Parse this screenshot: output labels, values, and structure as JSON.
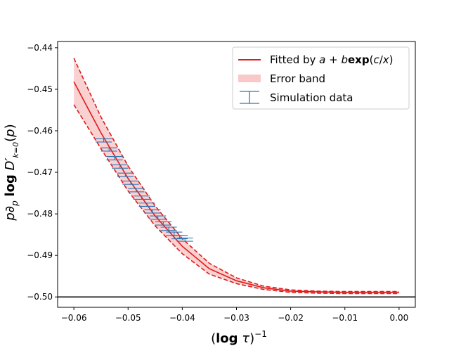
{
  "chart_data": {
    "type": "line",
    "xlabel": "(log τ)⁻¹",
    "ylabel": "p∂ₚ log D′ₖ₌₀(p)",
    "xlim": [
      -0.063,
      0.003
    ],
    "ylim": [
      -0.5025,
      -0.4385
    ],
    "x_ticks": [
      -0.06,
      -0.05,
      -0.04,
      -0.03,
      -0.02,
      -0.01,
      0.0
    ],
    "x_tick_labels": [
      "−0.06",
      "−0.05",
      "−0.04",
      "−0.03",
      "−0.02",
      "−0.01",
      "0.00"
    ],
    "y_ticks": [
      -0.44,
      -0.45,
      -0.46,
      -0.47,
      -0.48,
      -0.49,
      -0.5
    ],
    "y_tick_labels": [
      "−0.44",
      "−0.45",
      "−0.46",
      "−0.47",
      "−0.48",
      "−0.49",
      "−0.50"
    ],
    "legend_position": "top-right",
    "legend": [
      "Fitted by a + bexp(c/x)",
      "Error band",
      "Simulation data"
    ],
    "reference_line_y": -0.5,
    "colors": {
      "fit": "#e01b1b",
      "band": "#f9c9c9",
      "sim": "#2e75b6",
      "reference": "#000000"
    },
    "fit": {
      "x": [
        -0.06,
        -0.055,
        -0.05,
        -0.045,
        -0.04,
        -0.035,
        -0.03,
        -0.025,
        -0.02,
        -0.015,
        -0.01,
        -0.005,
        0.0
      ],
      "y": [
        -0.4482,
        -0.4605,
        -0.4715,
        -0.4805,
        -0.4878,
        -0.4932,
        -0.4961,
        -0.4978,
        -0.4986,
        -0.4988,
        -0.4989,
        -0.4989,
        -0.4989
      ]
    },
    "band_upper": {
      "x": [
        -0.06,
        -0.055,
        -0.05,
        -0.045,
        -0.04,
        -0.035,
        -0.03,
        -0.025,
        -0.02,
        -0.015,
        -0.01,
        -0.005,
        0.0
      ],
      "y": [
        -0.4425,
        -0.4567,
        -0.4685,
        -0.4781,
        -0.486,
        -0.4919,
        -0.4954,
        -0.4974,
        -0.4983,
        -0.4986,
        -0.4987,
        -0.4987,
        -0.4987
      ]
    },
    "band_lower": {
      "x": [
        -0.06,
        -0.055,
        -0.05,
        -0.045,
        -0.04,
        -0.035,
        -0.03,
        -0.025,
        -0.02,
        -0.015,
        -0.01,
        -0.005,
        0.0
      ],
      "y": [
        -0.4537,
        -0.4643,
        -0.4745,
        -0.4829,
        -0.4896,
        -0.4945,
        -0.4968,
        -0.4982,
        -0.4989,
        -0.4991,
        -0.4992,
        -0.4992,
        -0.4992
      ]
    },
    "simulation": {
      "x": [
        -0.0545,
        -0.0535,
        -0.0525,
        -0.0515,
        -0.0505,
        -0.0495,
        -0.0485,
        -0.0475,
        -0.0465,
        -0.0455,
        -0.0445,
        -0.0435,
        -0.0425,
        -0.0415,
        -0.0405,
        -0.0395
      ],
      "y": [
        -0.4623,
        -0.4645,
        -0.4666,
        -0.4686,
        -0.4706,
        -0.4725,
        -0.4743,
        -0.4761,
        -0.4778,
        -0.4794,
        -0.4809,
        -0.4823,
        -0.4836,
        -0.4848,
        -0.4856,
        -0.4862
      ],
      "x_err": 0.003,
      "y_err": 0.0004
    }
  }
}
